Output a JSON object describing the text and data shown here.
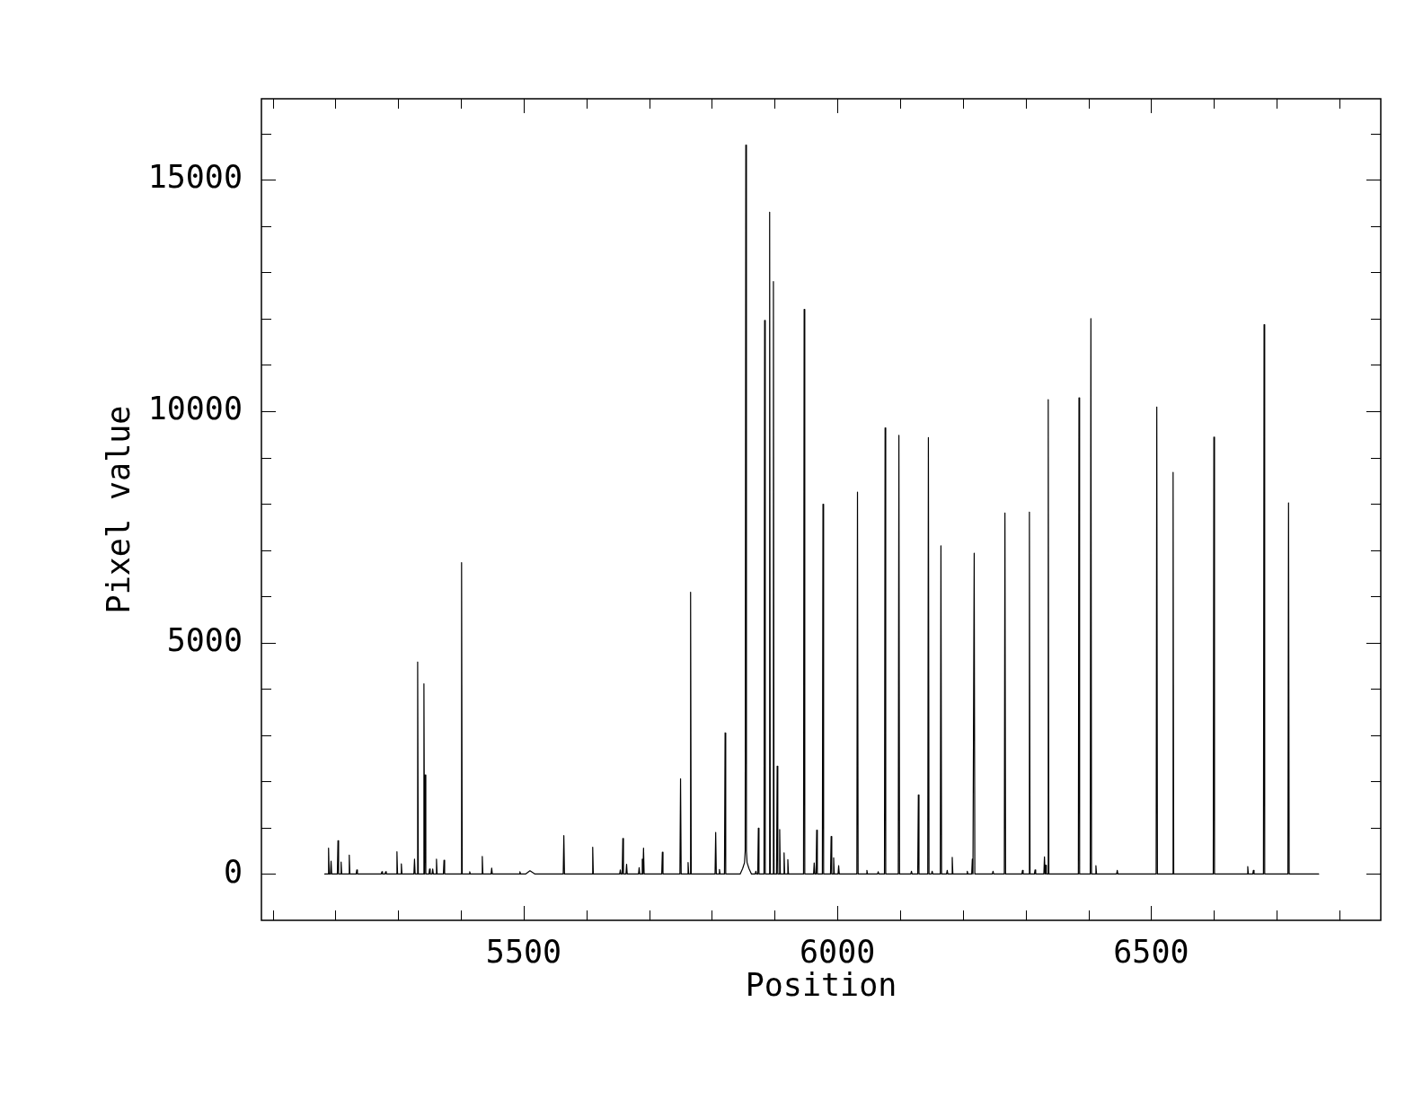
{
  "chart_data": {
    "type": "line",
    "xlabel": "Position",
    "ylabel": "Pixel value",
    "color": "#000000",
    "marker": "none",
    "xlim": [
      5082,
      6866
    ],
    "ylim": [
      -1000,
      16750
    ],
    "xticks": [
      {
        "value": 5100,
        "label": null
      },
      {
        "value": 5200,
        "label": null
      },
      {
        "value": 5300,
        "label": null
      },
      {
        "value": 5400,
        "label": null
      },
      5500,
      {
        "value": 5600,
        "label": null
      },
      {
        "value": 5700,
        "label": null
      },
      {
        "value": 5800,
        "label": null
      },
      {
        "value": 5900,
        "label": null
      },
      6000,
      {
        "value": 6100,
        "label": null
      },
      {
        "value": 6200,
        "label": null
      },
      {
        "value": 6300,
        "label": null
      },
      {
        "value": 6400,
        "label": null
      },
      6500,
      {
        "value": 6600,
        "label": null
      },
      {
        "value": 6700,
        "label": null
      },
      {
        "value": 6800,
        "label": null
      }
    ],
    "yticks": [
      0,
      {
        "value": 1000,
        "label": null
      },
      {
        "value": 2000,
        "label": null
      },
      {
        "value": 3000,
        "label": null
      },
      {
        "value": 4000,
        "label": null
      },
      5000,
      {
        "value": 6000,
        "label": null
      },
      {
        "value": 7000,
        "label": null
      },
      {
        "value": 8000,
        "label": null
      },
      {
        "value": 9000,
        "label": null
      },
      10000,
      {
        "value": 11000,
        "label": null
      },
      {
        "value": 12000,
        "label": null
      },
      {
        "value": 13000,
        "label": null
      },
      {
        "value": 14000,
        "label": null
      },
      15000,
      {
        "value": 16000,
        "label": null
      }
    ],
    "x": [
      5183,
      5188,
      5189,
      5190,
      5192,
      5193,
      5194,
      5203,
      5204,
      5205,
      5208,
      5209,
      5210,
      5221,
      5222,
      5223,
      5233,
      5234,
      5235,
      5273,
      5274,
      5275,
      5279,
      5280,
      5281,
      5297,
      5298,
      5299,
      5304,
      5305,
      5306,
      5325,
      5326,
      5327,
      5330,
      5331,
      5332,
      5340,
      5341,
      5342,
      5343,
      5344,
      5349,
      5350,
      5351,
      5354,
      5355,
      5356,
      5360,
      5361,
      5362,
      5372,
      5373,
      5374,
      5400,
      5401,
      5402,
      5413,
      5414,
      5415,
      5433,
      5434,
      5435,
      5448,
      5449,
      5450,
      5493,
      5494,
      5495,
      5503,
      5510,
      5518,
      5563,
      5564,
      5565,
      5609,
      5610,
      5611,
      5653,
      5654,
      5655,
      5657,
      5658,
      5659,
      5663,
      5664,
      5665,
      5683,
      5684,
      5685,
      5688,
      5689,
      5690,
      5691,
      5692,
      5720,
      5721,
      5722,
      5749,
      5750,
      5751,
      5761,
      5762,
      5763,
      5765,
      5766,
      5767,
      5805,
      5806,
      5807,
      5811,
      5812,
      5813,
      5820,
      5821,
      5822,
      5845,
      5849,
      5852,
      5853,
      5854,
      5855,
      5856,
      5859,
      5863,
      5869,
      5870,
      5871,
      5873,
      5874,
      5875,
      5883,
      5884,
      5885,
      5891,
      5892,
      5893,
      5897,
      5898,
      5899,
      5903,
      5904,
      5905,
      5907,
      5908,
      5909,
      5914,
      5915,
      5916,
      5920,
      5921,
      5922,
      5946,
      5947,
      5948,
      5962,
      5963,
      5964,
      5966,
      5967,
      5968,
      5976,
      5977,
      5978,
      5989,
      5990,
      5991,
      5993,
      5994,
      5995,
      6001,
      6002,
      6003,
      6031,
      6032,
      6033,
      6046,
      6047,
      6048,
      6064,
      6065,
      6066,
      6075,
      6076,
      6077,
      6097,
      6098,
      6099,
      6117,
      6118,
      6119,
      6128,
      6129,
      6130,
      6144,
      6145,
      6146,
      6150,
      6151,
      6152,
      6164,
      6165,
      6166,
      6174,
      6175,
      6176,
      6182,
      6183,
      6184,
      6206,
      6207,
      6208,
      6214,
      6215,
      6216,
      6217,
      6218,
      6219,
      6247,
      6248,
      6249,
      6266,
      6267,
      6268,
      6294,
      6295,
      6296,
      6305,
      6306,
      6307,
      6314,
      6315,
      6316,
      6329,
      6330,
      6331,
      6332,
      6333,
      6335,
      6336,
      6337,
      6384,
      6385,
      6386,
      6403,
      6404,
      6405,
      6411,
      6412,
      6413,
      6445,
      6446,
      6447,
      6508,
      6509,
      6510,
      6534,
      6535,
      6536,
      6599,
      6600,
      6601,
      6653,
      6654,
      6655,
      6662,
      6663,
      6664,
      6679,
      6680,
      6681,
      6718,
      6719,
      6720,
      6767
    ],
    "values": [
      0,
      0,
      560,
      0,
      0,
      280,
      0,
      0,
      720,
      0,
      0,
      260,
      0,
      0,
      410,
      0,
      0,
      90,
      0,
      0,
      50,
      0,
      0,
      50,
      0,
      0,
      480,
      0,
      0,
      220,
      0,
      0,
      320,
      0,
      0,
      4580,
      0,
      0,
      4110,
      0,
      2140,
      0,
      0,
      110,
      0,
      0,
      110,
      0,
      0,
      320,
      0,
      0,
      300,
      0,
      0,
      6730,
      0,
      0,
      50,
      0,
      0,
      380,
      0,
      0,
      130,
      0,
      0,
      50,
      0,
      0,
      70,
      0,
      0,
      830,
      0,
      0,
      580,
      0,
      0,
      90,
      0,
      0,
      770,
      0,
      0,
      210,
      0,
      0,
      140,
      0,
      0,
      320,
      0,
      560,
      0,
      0,
      470,
      0,
      0,
      2060,
      0,
      0,
      250,
      0,
      0,
      6090,
      0,
      0,
      900,
      0,
      0,
      100,
      0,
      0,
      3050,
      0,
      0,
      120,
      250,
      500,
      15750,
      500,
      250,
      120,
      0,
      0,
      60,
      0,
      0,
      990,
      0,
      0,
      11960,
      0,
      0,
      14300,
      0,
      0,
      12800,
      0,
      0,
      2330,
      0,
      0,
      960,
      0,
      0,
      460,
      0,
      0,
      310,
      0,
      0,
      12200,
      0,
      0,
      240,
      0,
      0,
      950,
      0,
      0,
      7990,
      0,
      0,
      810,
      0,
      0,
      350,
      0,
      0,
      180,
      0,
      0,
      8250,
      0,
      0,
      80,
      0,
      0,
      50,
      0,
      0,
      9640,
      0,
      0,
      9480,
      0,
      0,
      60,
      0,
      0,
      1710,
      0,
      0,
      9430,
      0,
      0,
      60,
      0,
      0,
      7090,
      0,
      0,
      80,
      0,
      0,
      360,
      0,
      0,
      60,
      0,
      0,
      320,
      0,
      0,
      6930,
      0,
      0,
      60,
      0,
      0,
      7800,
      0,
      0,
      80,
      0,
      0,
      7820,
      0,
      0,
      90,
      0,
      0,
      370,
      0,
      190,
      0,
      0,
      10250,
      0,
      0,
      10290,
      0,
      0,
      12000,
      0,
      0,
      180,
      0,
      0,
      80,
      0,
      0,
      10090,
      0,
      0,
      8680,
      0,
      0,
      9440,
      0,
      0,
      160,
      0,
      0,
      80,
      0,
      0,
      11870,
      0,
      0,
      8020,
      0,
      0
    ]
  }
}
